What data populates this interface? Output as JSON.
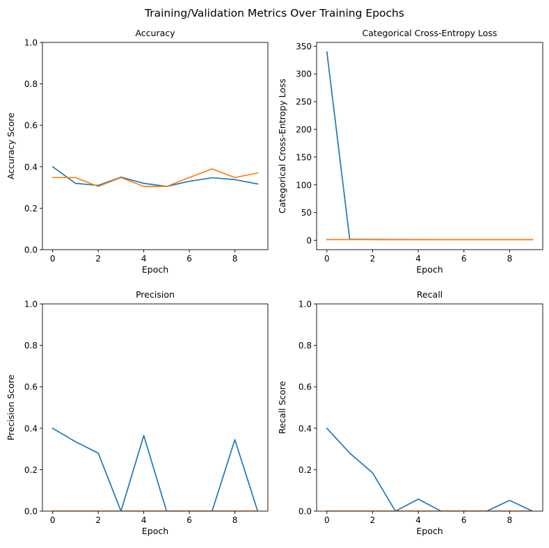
{
  "figure": {
    "suptitle": "Training/Validation Metrics Over Training Epochs"
  },
  "colors": {
    "train": "#1f77b4",
    "validation": "#ff7f0e"
  },
  "chart_data": [
    {
      "type": "line",
      "title": "Accuracy",
      "xlabel": "Epoch",
      "ylabel": "Accuracy Score",
      "xlim": [
        -0.45,
        9.45
      ],
      "ylim": [
        0,
        1
      ],
      "xticks": [
        0,
        2,
        4,
        6,
        8
      ],
      "yticks": [
        0.0,
        0.2,
        0.4,
        0.6,
        0.8,
        1.0
      ],
      "ytick_labels": [
        "0.0",
        "0.2",
        "0.4",
        "0.6",
        "0.8",
        "1.0"
      ],
      "grid": false,
      "x": [
        0,
        1,
        2,
        3,
        4,
        5,
        6,
        7,
        8,
        9
      ],
      "series": [
        {
          "color": "#1f77b4",
          "values": [
            0.4,
            0.32,
            0.31,
            0.35,
            0.32,
            0.305,
            0.33,
            0.347,
            0.338,
            0.317
          ]
        },
        {
          "color": "#ff7f0e",
          "values": [
            0.348,
            0.348,
            0.305,
            0.348,
            0.305,
            0.305,
            0.348,
            0.39,
            0.348,
            0.37
          ]
        }
      ]
    },
    {
      "type": "line",
      "title": "Categorical Cross-Entropy Loss",
      "xlabel": "Epoch",
      "ylabel": "Categorical Cross-Entropy Loss",
      "xlim": [
        -0.45,
        9.45
      ],
      "ylim": [
        -16.9,
        356.7
      ],
      "xticks": [
        0,
        2,
        4,
        6,
        8
      ],
      "yticks": [
        0,
        50,
        100,
        150,
        200,
        250,
        300,
        350
      ],
      "ytick_labels": [
        "0",
        "50",
        "100",
        "150",
        "200",
        "250",
        "300",
        "350"
      ],
      "grid": false,
      "x": [
        0,
        1,
        2,
        3,
        4,
        5,
        6,
        7,
        8,
        9
      ],
      "series": [
        {
          "color": "#1f77b4",
          "values": [
            339.7,
            1.9,
            1.6,
            1.4,
            1.3,
            1.2,
            1.2,
            1.1,
            1.1,
            1.1
          ]
        },
        {
          "color": "#ff7f0e",
          "values": [
            1.3,
            1.3,
            1.2,
            1.1,
            1.1,
            1.1,
            1.1,
            1.1,
            1.1,
            1.1
          ]
        }
      ]
    },
    {
      "type": "line",
      "title": "Precision",
      "xlabel": "Epoch",
      "ylabel": "Precision Score",
      "xlim": [
        -0.45,
        9.45
      ],
      "ylim": [
        0,
        1
      ],
      "xticks": [
        0,
        2,
        4,
        6,
        8
      ],
      "yticks": [
        0.0,
        0.2,
        0.4,
        0.6,
        0.8,
        1.0
      ],
      "ytick_labels": [
        "0.0",
        "0.2",
        "0.4",
        "0.6",
        "0.8",
        "1.0"
      ],
      "grid": false,
      "x": [
        0,
        1,
        2,
        3,
        4,
        5,
        6,
        7,
        8,
        9
      ],
      "series": [
        {
          "color": "#1f77b4",
          "values": [
            0.4,
            0.335,
            0.28,
            0.0,
            0.365,
            0.0,
            0.0,
            0.0,
            0.345,
            0.0
          ]
        },
        {
          "color": "#ff7f0e",
          "values": [
            0,
            0,
            0,
            0,
            0,
            0,
            0,
            0,
            0,
            0
          ]
        }
      ]
    },
    {
      "type": "line",
      "title": "Recall",
      "xlabel": "Epoch",
      "ylabel": "Recall Score",
      "xlim": [
        -0.45,
        9.45
      ],
      "ylim": [
        0,
        1
      ],
      "xticks": [
        0,
        2,
        4,
        6,
        8
      ],
      "yticks": [
        0.0,
        0.2,
        0.4,
        0.6,
        0.8,
        1.0
      ],
      "ytick_labels": [
        "0.0",
        "0.2",
        "0.4",
        "0.6",
        "0.8",
        "1.0"
      ],
      "grid": false,
      "x": [
        0,
        1,
        2,
        3,
        4,
        5,
        6,
        7,
        8,
        9
      ],
      "series": [
        {
          "color": "#1f77b4",
          "values": [
            0.4,
            0.28,
            0.185,
            0.0,
            0.058,
            0.0,
            0.0,
            0.0,
            0.052,
            0.0
          ]
        },
        {
          "color": "#ff7f0e",
          "values": [
            0,
            0,
            0,
            0,
            0,
            0,
            0,
            0,
            0,
            0
          ]
        }
      ]
    }
  ]
}
